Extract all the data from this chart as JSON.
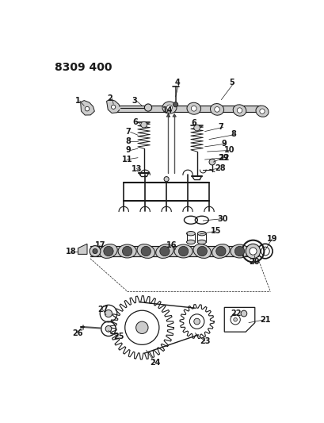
{
  "title": "8309 400",
  "bg_color": "#ffffff",
  "line_color": "#1a1a1a",
  "title_fontsize": 10,
  "label_fontsize": 7,
  "fig_width": 4.1,
  "fig_height": 5.33,
  "dpi": 100,
  "label_color": "#1a1a1a",
  "gray_fill": "#888888",
  "light_gray": "#cccccc",
  "dark_gray": "#555555"
}
